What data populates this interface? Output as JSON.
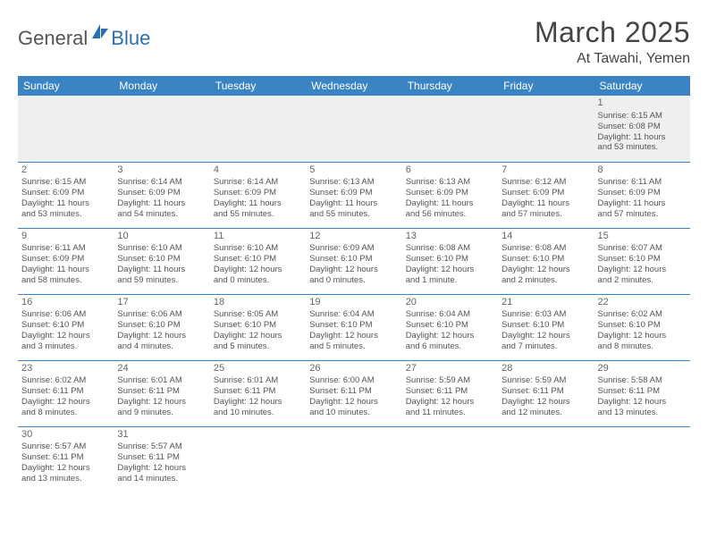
{
  "logo": {
    "part1": "General",
    "part2": "Blue"
  },
  "title": "March 2025",
  "location": "At Tawahi, Yemen",
  "colors": {
    "header_bg": "#3b84c4",
    "header_text": "#ffffff",
    "border": "#3b84c4",
    "body_text": "#555555",
    "empty_bg": "#efefef",
    "logo_gray": "#555555",
    "logo_blue": "#2b6fb0"
  },
  "weekdays": [
    "Sunday",
    "Monday",
    "Tuesday",
    "Wednesday",
    "Thursday",
    "Friday",
    "Saturday"
  ],
  "weeks": [
    [
      null,
      null,
      null,
      null,
      null,
      null,
      {
        "n": "1",
        "sr": "Sunrise: 6:15 AM",
        "ss": "Sunset: 6:08 PM",
        "d1": "Daylight: 11 hours",
        "d2": "and 53 minutes."
      }
    ],
    [
      {
        "n": "2",
        "sr": "Sunrise: 6:15 AM",
        "ss": "Sunset: 6:09 PM",
        "d1": "Daylight: 11 hours",
        "d2": "and 53 minutes."
      },
      {
        "n": "3",
        "sr": "Sunrise: 6:14 AM",
        "ss": "Sunset: 6:09 PM",
        "d1": "Daylight: 11 hours",
        "d2": "and 54 minutes."
      },
      {
        "n": "4",
        "sr": "Sunrise: 6:14 AM",
        "ss": "Sunset: 6:09 PM",
        "d1": "Daylight: 11 hours",
        "d2": "and 55 minutes."
      },
      {
        "n": "5",
        "sr": "Sunrise: 6:13 AM",
        "ss": "Sunset: 6:09 PM",
        "d1": "Daylight: 11 hours",
        "d2": "and 55 minutes."
      },
      {
        "n": "6",
        "sr": "Sunrise: 6:13 AM",
        "ss": "Sunset: 6:09 PM",
        "d1": "Daylight: 11 hours",
        "d2": "and 56 minutes."
      },
      {
        "n": "7",
        "sr": "Sunrise: 6:12 AM",
        "ss": "Sunset: 6:09 PM",
        "d1": "Daylight: 11 hours",
        "d2": "and 57 minutes."
      },
      {
        "n": "8",
        "sr": "Sunrise: 6:11 AM",
        "ss": "Sunset: 6:09 PM",
        "d1": "Daylight: 11 hours",
        "d2": "and 57 minutes."
      }
    ],
    [
      {
        "n": "9",
        "sr": "Sunrise: 6:11 AM",
        "ss": "Sunset: 6:09 PM",
        "d1": "Daylight: 11 hours",
        "d2": "and 58 minutes."
      },
      {
        "n": "10",
        "sr": "Sunrise: 6:10 AM",
        "ss": "Sunset: 6:10 PM",
        "d1": "Daylight: 11 hours",
        "d2": "and 59 minutes."
      },
      {
        "n": "11",
        "sr": "Sunrise: 6:10 AM",
        "ss": "Sunset: 6:10 PM",
        "d1": "Daylight: 12 hours",
        "d2": "and 0 minutes."
      },
      {
        "n": "12",
        "sr": "Sunrise: 6:09 AM",
        "ss": "Sunset: 6:10 PM",
        "d1": "Daylight: 12 hours",
        "d2": "and 0 minutes."
      },
      {
        "n": "13",
        "sr": "Sunrise: 6:08 AM",
        "ss": "Sunset: 6:10 PM",
        "d1": "Daylight: 12 hours",
        "d2": "and 1 minute."
      },
      {
        "n": "14",
        "sr": "Sunrise: 6:08 AM",
        "ss": "Sunset: 6:10 PM",
        "d1": "Daylight: 12 hours",
        "d2": "and 2 minutes."
      },
      {
        "n": "15",
        "sr": "Sunrise: 6:07 AM",
        "ss": "Sunset: 6:10 PM",
        "d1": "Daylight: 12 hours",
        "d2": "and 2 minutes."
      }
    ],
    [
      {
        "n": "16",
        "sr": "Sunrise: 6:06 AM",
        "ss": "Sunset: 6:10 PM",
        "d1": "Daylight: 12 hours",
        "d2": "and 3 minutes."
      },
      {
        "n": "17",
        "sr": "Sunrise: 6:06 AM",
        "ss": "Sunset: 6:10 PM",
        "d1": "Daylight: 12 hours",
        "d2": "and 4 minutes."
      },
      {
        "n": "18",
        "sr": "Sunrise: 6:05 AM",
        "ss": "Sunset: 6:10 PM",
        "d1": "Daylight: 12 hours",
        "d2": "and 5 minutes."
      },
      {
        "n": "19",
        "sr": "Sunrise: 6:04 AM",
        "ss": "Sunset: 6:10 PM",
        "d1": "Daylight: 12 hours",
        "d2": "and 5 minutes."
      },
      {
        "n": "20",
        "sr": "Sunrise: 6:04 AM",
        "ss": "Sunset: 6:10 PM",
        "d1": "Daylight: 12 hours",
        "d2": "and 6 minutes."
      },
      {
        "n": "21",
        "sr": "Sunrise: 6:03 AM",
        "ss": "Sunset: 6:10 PM",
        "d1": "Daylight: 12 hours",
        "d2": "and 7 minutes."
      },
      {
        "n": "22",
        "sr": "Sunrise: 6:02 AM",
        "ss": "Sunset: 6:10 PM",
        "d1": "Daylight: 12 hours",
        "d2": "and 8 minutes."
      }
    ],
    [
      {
        "n": "23",
        "sr": "Sunrise: 6:02 AM",
        "ss": "Sunset: 6:11 PM",
        "d1": "Daylight: 12 hours",
        "d2": "and 8 minutes."
      },
      {
        "n": "24",
        "sr": "Sunrise: 6:01 AM",
        "ss": "Sunset: 6:11 PM",
        "d1": "Daylight: 12 hours",
        "d2": "and 9 minutes."
      },
      {
        "n": "25",
        "sr": "Sunrise: 6:01 AM",
        "ss": "Sunset: 6:11 PM",
        "d1": "Daylight: 12 hours",
        "d2": "and 10 minutes."
      },
      {
        "n": "26",
        "sr": "Sunrise: 6:00 AM",
        "ss": "Sunset: 6:11 PM",
        "d1": "Daylight: 12 hours",
        "d2": "and 10 minutes."
      },
      {
        "n": "27",
        "sr": "Sunrise: 5:59 AM",
        "ss": "Sunset: 6:11 PM",
        "d1": "Daylight: 12 hours",
        "d2": "and 11 minutes."
      },
      {
        "n": "28",
        "sr": "Sunrise: 5:59 AM",
        "ss": "Sunset: 6:11 PM",
        "d1": "Daylight: 12 hours",
        "d2": "and 12 minutes."
      },
      {
        "n": "29",
        "sr": "Sunrise: 5:58 AM",
        "ss": "Sunset: 6:11 PM",
        "d1": "Daylight: 12 hours",
        "d2": "and 13 minutes."
      }
    ],
    [
      {
        "n": "30",
        "sr": "Sunrise: 5:57 AM",
        "ss": "Sunset: 6:11 PM",
        "d1": "Daylight: 12 hours",
        "d2": "and 13 minutes."
      },
      {
        "n": "31",
        "sr": "Sunrise: 5:57 AM",
        "ss": "Sunset: 6:11 PM",
        "d1": "Daylight: 12 hours",
        "d2": "and 14 minutes."
      },
      null,
      null,
      null,
      null,
      null
    ]
  ]
}
